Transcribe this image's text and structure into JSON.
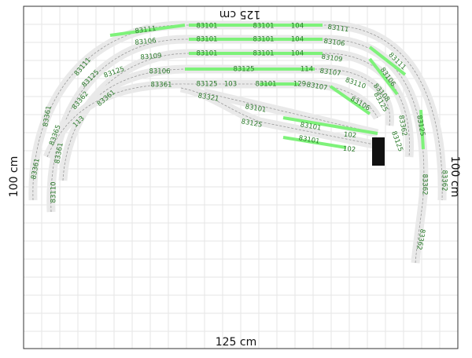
{
  "dimensions": {
    "top": "125 cm",
    "bottom": "125 cm",
    "left": "100 cm",
    "right": "100 cm"
  },
  "labels": [
    "83111",
    "83101",
    "83101",
    "104",
    "83111",
    "83106",
    "83101",
    "83101",
    "104",
    "83106",
    "83109",
    "83101",
    "83101",
    "104",
    "83109",
    "83125",
    "83106",
    "83125",
    "114",
    "83107",
    "83361",
    "83125",
    "103",
    "83101",
    "129",
    "83107",
    "83110",
    "83111",
    "83125",
    "83362",
    "83361",
    "83361",
    "113",
    "83321",
    "83101",
    "83125",
    "83101",
    "102",
    "83101",
    "102",
    "83106",
    "83106",
    "83111",
    "83108",
    "83125",
    "83362",
    "83125",
    "83125",
    "83361",
    "83361",
    "83110",
    "83362",
    "83362",
    "83362",
    "83365"
  ]
}
